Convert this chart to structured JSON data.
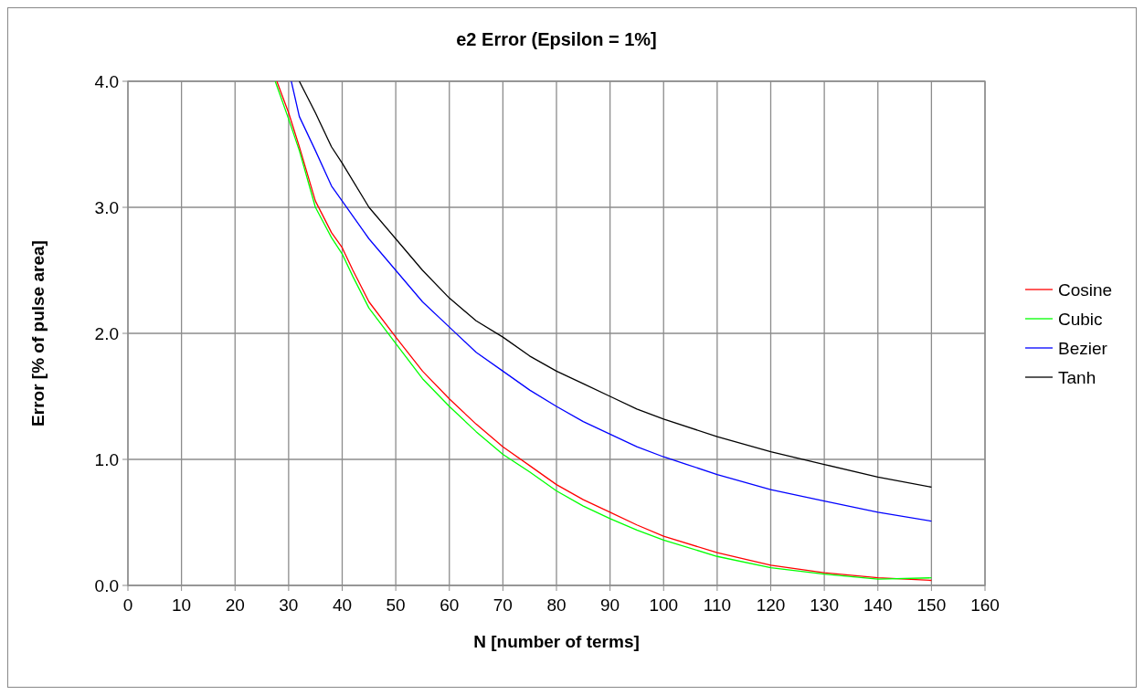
{
  "chart_data": {
    "type": "line",
    "title": "e2 Error (Epsilon = 1%]",
    "xlabel": "N [number of terms]",
    "ylabel": "Error [% of pulse area]",
    "xlim": [
      0,
      160
    ],
    "xticks": [
      0,
      10,
      20,
      30,
      40,
      50,
      60,
      70,
      80,
      90,
      100,
      110,
      120,
      130,
      140,
      150,
      160
    ],
    "ylim": [
      0,
      4
    ],
    "yticks": [
      {
        "value": 0,
        "label": "0.0"
      },
      {
        "value": 1,
        "label": "1.0"
      },
      {
        "value": 2,
        "label": "2.0"
      },
      {
        "value": 3,
        "label": "3.0"
      },
      {
        "value": 4,
        "label": "4.0"
      }
    ],
    "grid": true,
    "legend": "right",
    "marker": "none",
    "series": [
      {
        "name": "Cosine",
        "color": "#ff0000",
        "x": [
          27.8,
          30,
          32,
          35,
          38,
          40,
          42,
          45,
          50,
          55,
          60,
          65,
          70,
          75,
          80,
          85,
          90,
          95,
          100,
          110,
          120,
          130,
          140,
          150
        ],
        "values": [
          4.0,
          3.75,
          3.48,
          3.05,
          2.8,
          2.68,
          2.5,
          2.25,
          1.97,
          1.7,
          1.48,
          1.28,
          1.1,
          0.95,
          0.8,
          0.68,
          0.58,
          0.48,
          0.39,
          0.26,
          0.16,
          0.1,
          0.06,
          0.04
        ]
      },
      {
        "name": "Cubic",
        "color": "#00ff00",
        "x": [
          27.5,
          30,
          32,
          35,
          38,
          40,
          42,
          45,
          50,
          55,
          60,
          65,
          70,
          75,
          80,
          85,
          90,
          95,
          100,
          110,
          120,
          130,
          140,
          150
        ],
        "values": [
          4.0,
          3.7,
          3.45,
          3.0,
          2.76,
          2.63,
          2.45,
          2.2,
          1.92,
          1.64,
          1.42,
          1.22,
          1.04,
          0.9,
          0.75,
          0.63,
          0.53,
          0.44,
          0.36,
          0.23,
          0.14,
          0.09,
          0.05,
          0.06
        ]
      },
      {
        "name": "Bezier",
        "color": "#0000ff",
        "x": [
          30.5,
          32,
          35,
          38,
          40,
          45,
          50,
          55,
          60,
          65,
          70,
          75,
          80,
          85,
          90,
          95,
          100,
          110,
          120,
          130,
          140,
          150
        ],
        "values": [
          4.0,
          3.72,
          3.45,
          3.17,
          3.05,
          2.75,
          2.5,
          2.25,
          2.05,
          1.85,
          1.7,
          1.55,
          1.42,
          1.3,
          1.2,
          1.1,
          1.02,
          0.88,
          0.76,
          0.67,
          0.58,
          0.51
        ]
      },
      {
        "name": "Tanh",
        "color": "#000000",
        "x": [
          32,
          35,
          38,
          40,
          45,
          50,
          55,
          60,
          65,
          70,
          75,
          80,
          85,
          90,
          95,
          100,
          110,
          120,
          130,
          140,
          150
        ],
        "values": [
          4.0,
          3.75,
          3.48,
          3.35,
          3.0,
          2.75,
          2.5,
          2.28,
          2.1,
          1.97,
          1.82,
          1.7,
          1.6,
          1.5,
          1.4,
          1.32,
          1.18,
          1.06,
          0.96,
          0.86,
          0.78
        ]
      }
    ]
  }
}
